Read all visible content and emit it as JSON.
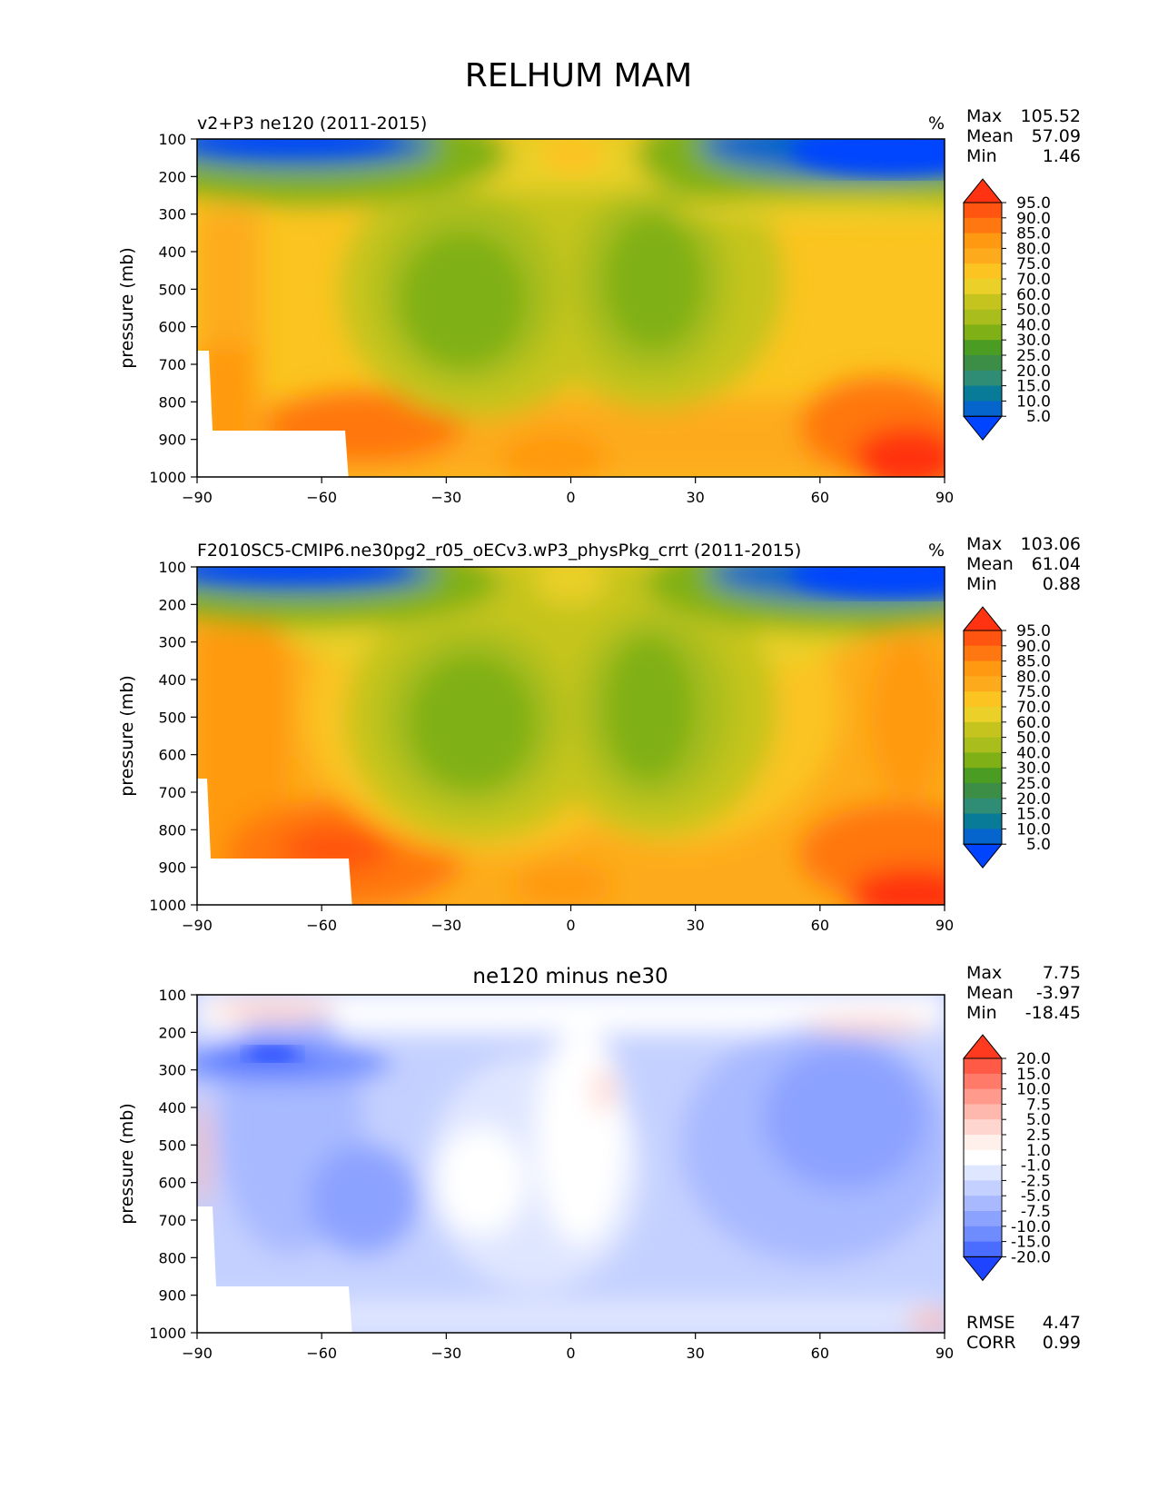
{
  "figure_title": "RELHUM MAM",
  "chart_data": [
    {
      "type": "heatmap",
      "plot": "test",
      "title": "v2+P3 ne120 (2011-2015)",
      "units": "%",
      "xlabel": "",
      "ylabel": "pressure (mb)",
      "x_ticks": [
        "−90",
        "−60",
        "−30",
        "0",
        "30",
        "60",
        "90"
      ],
      "y_ticks": [
        "100",
        "200",
        "300",
        "400",
        "500",
        "600",
        "700",
        "800",
        "900",
        "1000"
      ],
      "xlim": [
        -90,
        90
      ],
      "ylim": [
        1000,
        100
      ],
      "stats": [
        {
          "label": "Max",
          "value": "105.52"
        },
        {
          "label": "Mean",
          "value": "57.09"
        },
        {
          "label": "Min",
          "value": "1.46"
        }
      ],
      "colorbar": {
        "levels": [
          "95.0",
          "90.0",
          "85.0",
          "80.0",
          "75.0",
          "70.0",
          "60.0",
          "50.0",
          "40.0",
          "30.0",
          "25.0",
          "20.0",
          "15.0",
          "10.0",
          "5.0"
        ],
        "colors": [
          "#ff3311",
          "#ff5511",
          "#ff7711",
          "#ff9911",
          "#fdab1c",
          "#fbc420",
          "#ead028",
          "#c5c41f",
          "#a9bd1c",
          "#7fb016",
          "#4a9c22",
          "#3c8e47",
          "#2e8d74",
          "#087b98",
          "#0565cc",
          "#0044ff"
        ]
      }
    },
    {
      "type": "heatmap",
      "plot": "reference",
      "title": "F2010SC5-CMIP6.ne30pg2_r05_oECv3.wP3_physPkg_crrt (2011-2015)",
      "units": "%",
      "xlabel": "",
      "ylabel": "pressure (mb)",
      "x_ticks": [
        "−90",
        "−60",
        "−30",
        "0",
        "30",
        "60",
        "90"
      ],
      "y_ticks": [
        "100",
        "200",
        "300",
        "400",
        "500",
        "600",
        "700",
        "800",
        "900",
        "1000"
      ],
      "xlim": [
        -90,
        90
      ],
      "ylim": [
        1000,
        100
      ],
      "stats": [
        {
          "label": "Max",
          "value": "103.06"
        },
        {
          "label": "Mean",
          "value": "61.04"
        },
        {
          "label": "Min",
          "value": "0.88"
        }
      ],
      "colorbar": {
        "levels": [
          "95.0",
          "90.0",
          "85.0",
          "80.0",
          "75.0",
          "70.0",
          "60.0",
          "50.0",
          "40.0",
          "30.0",
          "25.0",
          "20.0",
          "15.0",
          "10.0",
          "5.0"
        ],
        "colors": [
          "#ff3311",
          "#ff5511",
          "#ff7711",
          "#ff9911",
          "#fdab1c",
          "#fbc420",
          "#ead028",
          "#c5c41f",
          "#a9bd1c",
          "#7fb016",
          "#4a9c22",
          "#3c8e47",
          "#2e8d74",
          "#087b98",
          "#0565cc",
          "#0044ff"
        ]
      }
    },
    {
      "type": "heatmap",
      "plot": "difference",
      "title": "ne120 minus ne30",
      "units": "",
      "xlabel": "",
      "ylabel": "pressure (mb)",
      "x_ticks": [
        "−90",
        "−60",
        "−30",
        "0",
        "30",
        "60",
        "90"
      ],
      "y_ticks": [
        "100",
        "200",
        "300",
        "400",
        "500",
        "600",
        "700",
        "800",
        "900",
        "1000"
      ],
      "xlim": [
        -90,
        90
      ],
      "ylim": [
        1000,
        100
      ],
      "stats": [
        {
          "label": "Max",
          "value": "7.75"
        },
        {
          "label": "Mean",
          "value": "-3.97"
        },
        {
          "label": "Min",
          "value": "-18.45"
        }
      ],
      "extra_stats": [
        {
          "label": "RMSE",
          "value": "4.47"
        },
        {
          "label": "CORR",
          "value": "0.99"
        }
      ],
      "colorbar": {
        "levels": [
          "20.0",
          "15.0",
          "10.0",
          "7.5",
          "5.0",
          "2.5",
          "1.0",
          "-1.0",
          "-2.5",
          "-5.0",
          "-7.5",
          "-10.0",
          "-15.0",
          "-20.0"
        ],
        "colors": [
          "#ff3a1f",
          "#ff5a45",
          "#ff7a68",
          "#ff9a8c",
          "#ffb8ad",
          "#ffd6cf",
          "#fff0ec",
          "#ffffff",
          "#dfe6ff",
          "#c4d0ff",
          "#a8b9ff",
          "#8ca2ff",
          "#6f8cff",
          "#4a6cff",
          "#1f44ff"
        ]
      }
    }
  ]
}
